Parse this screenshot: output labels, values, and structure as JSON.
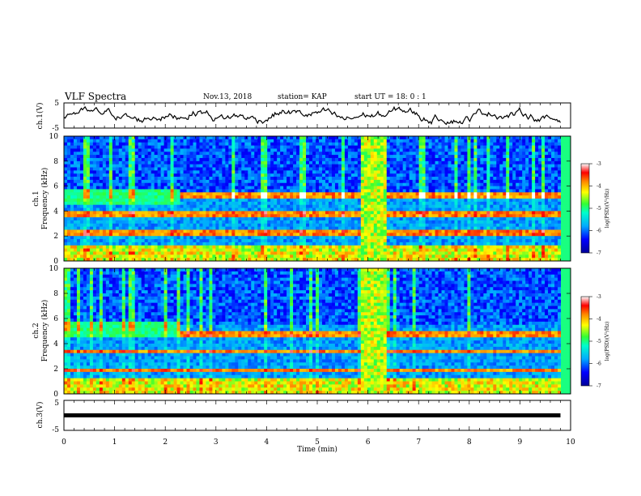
{
  "header": {
    "title": "VLF Spectra",
    "date": "Nov.13, 2018",
    "station": "station= KAP",
    "start": "start  UT =   18: 0  : 1"
  },
  "chart_data": [
    {
      "type": "line",
      "panel": "ch1-waveform",
      "ylabel": "ch.1(V)",
      "ylim": [
        -5,
        5
      ],
      "yticks": [
        "5",
        "-5"
      ],
      "xlim": [
        0,
        10
      ]
    },
    {
      "type": "heatmap",
      "panel": "ch1-spectrogram",
      "ylabel_lines": [
        "ch.1",
        "Frequency (kHz)"
      ],
      "ylim": [
        0,
        10
      ],
      "yticks": [
        "0",
        "2",
        "4",
        "6",
        "8",
        "10"
      ],
      "xlim": [
        0,
        10
      ],
      "strong_bands_khz": [
        2.2,
        3.8,
        5.2
      ],
      "burst_interval_min": [
        5.85,
        6.35
      ],
      "colorbar": {
        "label": "log(PSD)(V²/Hz)",
        "range": [
          -7,
          -3
        ],
        "ticks": [
          "-3",
          "-4",
          "-5",
          "-6",
          "-7"
        ],
        "colors": [
          "#000099",
          "#0000ff",
          "#00aaff",
          "#00ffcc",
          "#33ff33",
          "#ffff00",
          "#ff8800",
          "#ff0000",
          "#ffffff"
        ]
      }
    },
    {
      "type": "heatmap",
      "panel": "ch2-spectrogram",
      "ylabel_lines": [
        "ch.2",
        "Frequency (kHz)"
      ],
      "ylim": [
        0,
        10
      ],
      "yticks": [
        "0",
        "2",
        "4",
        "6",
        "8",
        "10"
      ],
      "xlim": [
        0,
        10
      ],
      "strong_bands_khz": [
        1.9,
        3.4,
        4.8
      ],
      "burst_interval_min": [
        5.85,
        6.35
      ],
      "colorbar": {
        "label": "log(PSD)(V²/Hz)",
        "range": [
          -7,
          -3
        ],
        "ticks": [
          "-3",
          "-4",
          "-5",
          "-6",
          "-7"
        ],
        "colors": [
          "#000099",
          "#0000ff",
          "#00aaff",
          "#00ffcc",
          "#33ff33",
          "#ffff00",
          "#ff8800",
          "#ff0000",
          "#ffffff"
        ]
      }
    },
    {
      "type": "line",
      "panel": "ch3-waveform",
      "ylabel": "ch.3(V)",
      "ylim": [
        -5,
        5
      ],
      "yticks": [
        "5",
        "-5"
      ],
      "xlim": [
        0,
        10
      ],
      "series": [
        {
          "x": [
            0,
            9.8
          ],
          "y": [
            0,
            0
          ]
        }
      ]
    }
  ],
  "xaxis": {
    "label": "Time  (min)",
    "ticks": [
      "0",
      "1",
      "2",
      "3",
      "4",
      "5",
      "6",
      "7",
      "8",
      "9",
      "10"
    ],
    "range": [
      0,
      10
    ]
  }
}
